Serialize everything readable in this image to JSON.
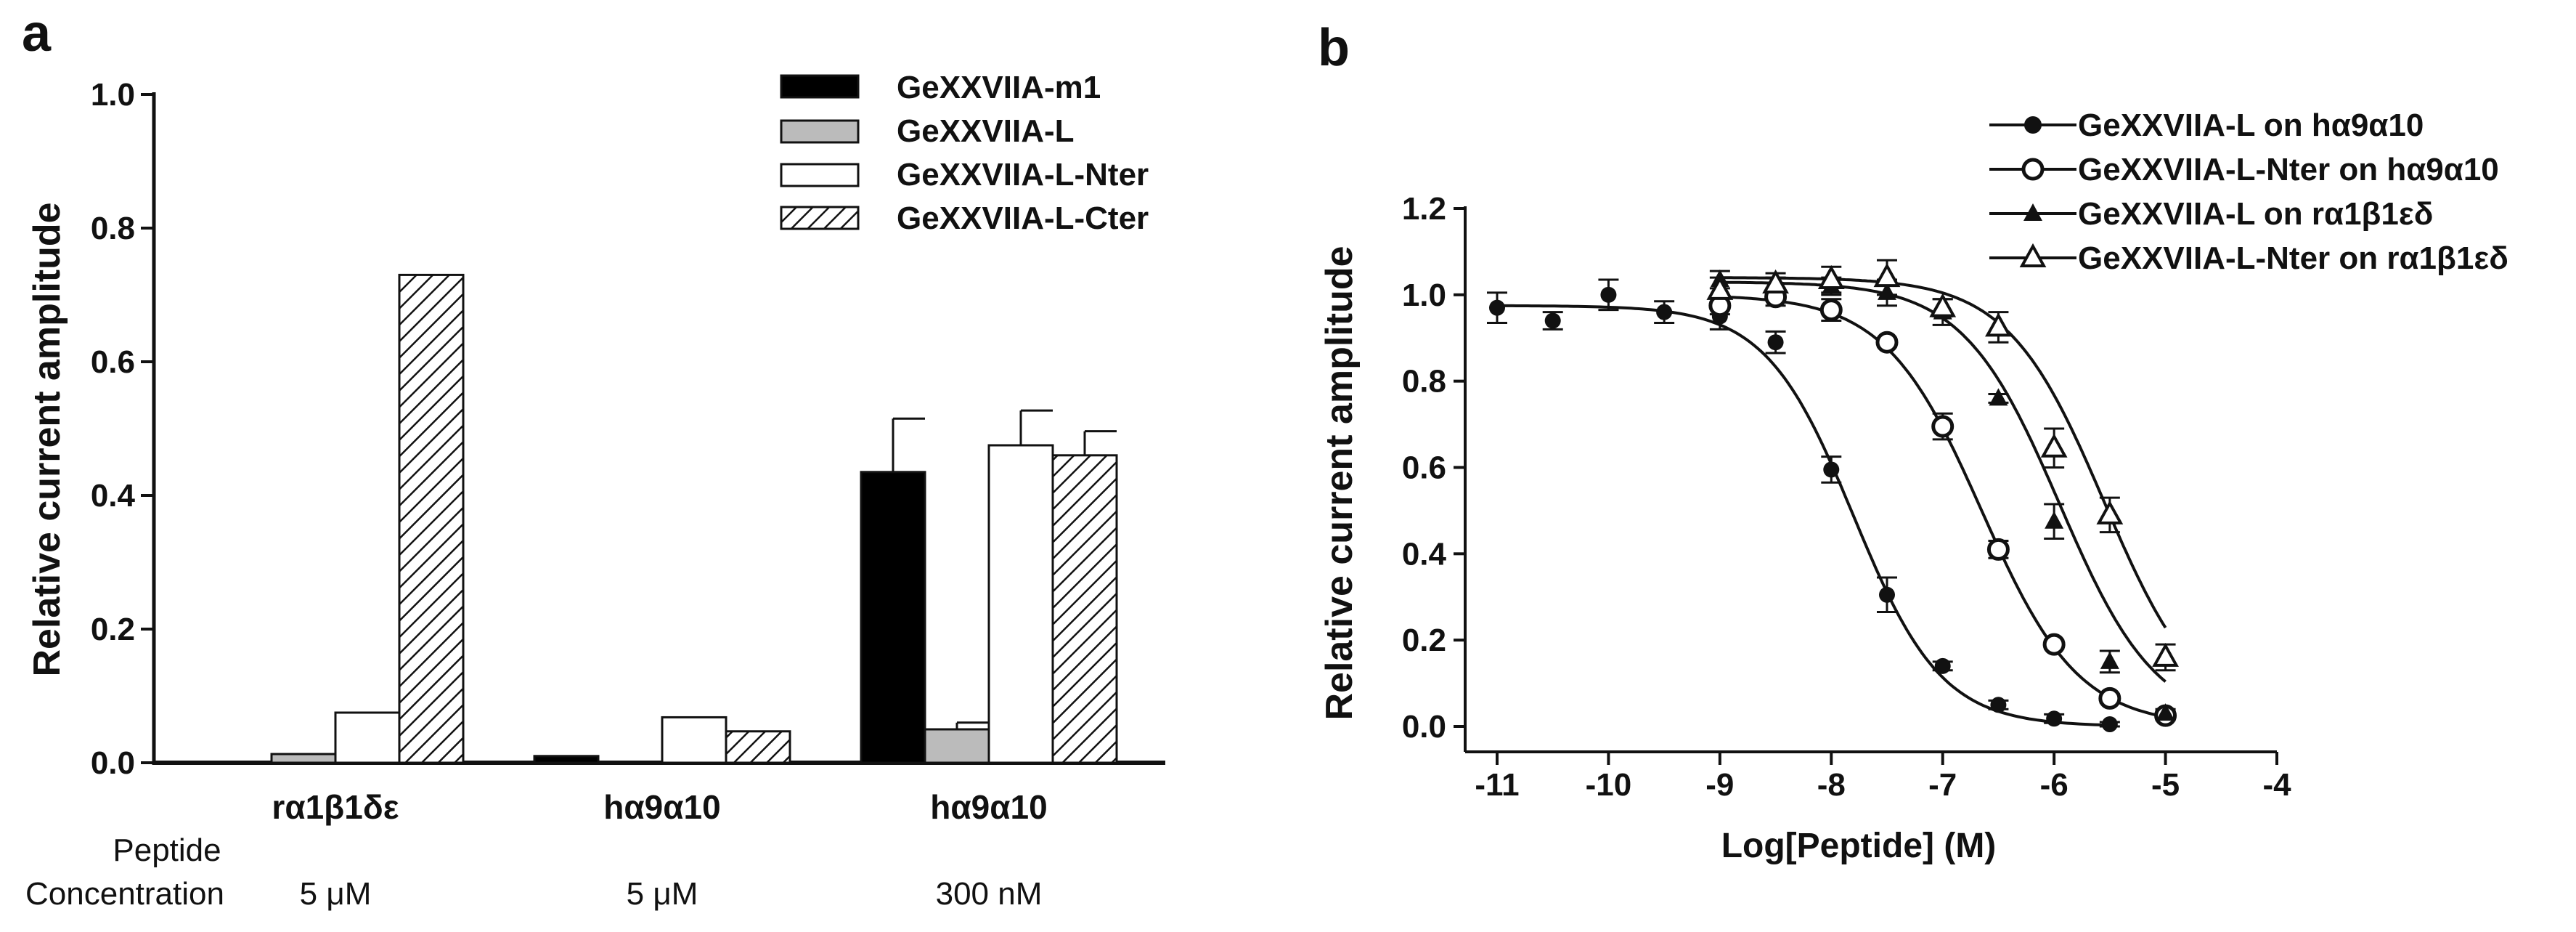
{
  "panel_a_label": "a",
  "panel_b_label": "b",
  "chart_data": [
    {
      "type": "bar",
      "ylabel": "Relative current amplitude",
      "ylim": [
        0,
        1.0
      ],
      "yticks": [
        "0.0",
        "0.2",
        "0.4",
        "0.6",
        "0.8",
        "1.0"
      ],
      "categories": [
        "rα1β1δε",
        "hα9α10",
        "hα9α10"
      ],
      "concentration_label_1": "Peptide",
      "concentration_label_2": "Concentration",
      "concentrations": [
        "5 μM",
        "5 μM",
        "300 nM"
      ],
      "legend_position": "top-right",
      "series": [
        {
          "name": "GeXXVIIA-m1",
          "fill": "#000000",
          "values": [
            0.0,
            0.01,
            0.435
          ],
          "errors": [
            0,
            0,
            0.08
          ]
        },
        {
          "name": "GeXXVIIA-L",
          "fill": "#bbbbbb",
          "values": [
            0.013,
            0.0,
            0.05
          ],
          "errors": [
            0,
            0,
            0.01
          ]
        },
        {
          "name": "GeXXVIIA-L-Nter",
          "fill": "#ffffff",
          "values": [
            0.075,
            0.068,
            0.475
          ],
          "errors": [
            0,
            0,
            0.052
          ]
        },
        {
          "name": "GeXXVIIA-L-Cter",
          "fill": "hatch",
          "values": [
            0.73,
            0.047,
            0.46
          ],
          "errors": [
            0,
            0,
            0.036
          ]
        }
      ]
    },
    {
      "type": "scatter",
      "xlabel": "Log[Peptide] (M)",
      "ylabel": "Relative current amplitude",
      "xlim": [
        -11,
        -4
      ],
      "ylim": [
        0,
        1.2
      ],
      "xticks": [
        "-11",
        "-10",
        "-9",
        "-8",
        "-7",
        "-6",
        "-5",
        "-4"
      ],
      "yticks": [
        "0.0",
        "0.2",
        "0.4",
        "0.6",
        "0.8",
        "1.0",
        "1.2"
      ],
      "legend_position": "top-right",
      "series": [
        {
          "name": "GeXXVIIA-L on hα9α10",
          "marker": "circle-filled",
          "ic50_log": -7.8,
          "hill": 1.1,
          "top": 0.975,
          "x": [
            -11,
            -10.5,
            -10,
            -9.5,
            -9,
            -8.5,
            -8,
            -7.5,
            -7,
            -6.5,
            -6,
            -5.5
          ],
          "y": [
            0.97,
            0.94,
            1.0,
            0.96,
            0.95,
            0.89,
            0.595,
            0.305,
            0.14,
            0.05,
            0.018,
            0.005
          ],
          "err": [
            0.035,
            0.02,
            0.035,
            0.025,
            0.03,
            0.025,
            0.03,
            0.04,
            0.01,
            0.01,
            0.01,
            0.005
          ]
        },
        {
          "name": "GeXXVIIA-L-Nter on hα9α10",
          "marker": "circle-open",
          "ic50_log": -6.65,
          "hill": 1.0,
          "top": 1.0,
          "x": [
            -9,
            -8.5,
            -8,
            -7.5,
            -7,
            -6.5,
            -6,
            -5.5,
            -5
          ],
          "y": [
            0.975,
            0.995,
            0.965,
            0.89,
            0.695,
            0.41,
            0.19,
            0.065,
            0.025
          ],
          "err": [
            0.02,
            0.02,
            0.025,
            0.01,
            0.03,
            0.02,
            0.01,
            0.01,
            0.01
          ]
        },
        {
          "name": "GeXXVIIA-L on rα1β1εδ",
          "marker": "triangle-filled",
          "ic50_log": -5.95,
          "hill": 1.0,
          "top": 1.03,
          "x": [
            -9,
            -8.5,
            -8,
            -7.5,
            -7,
            -6.5,
            -6,
            -5.5,
            -5
          ],
          "y": [
            1.035,
            1.02,
            1.02,
            1.005,
            0.96,
            0.76,
            0.475,
            0.15,
            0.03
          ],
          "err": [
            0.02,
            0.02,
            0.02,
            0.03,
            0.03,
            0.01,
            0.04,
            0.025,
            0.01
          ]
        },
        {
          "name": "GeXXVIIA-L-Nter on rα1β1εδ",
          "marker": "triangle-open",
          "ic50_log": -5.55,
          "hill": 1.0,
          "top": 1.04,
          "x": [
            -9,
            -8.5,
            -8,
            -7.5,
            -7,
            -6.5,
            -6,
            -5.5,
            -5
          ],
          "y": [
            1.01,
            1.025,
            1.035,
            1.04,
            0.97,
            0.925,
            0.645,
            0.49,
            0.16
          ],
          "err": [
            0.03,
            0.025,
            0.03,
            0.04,
            0.02,
            0.035,
            0.045,
            0.04,
            0.03
          ]
        }
      ]
    }
  ]
}
